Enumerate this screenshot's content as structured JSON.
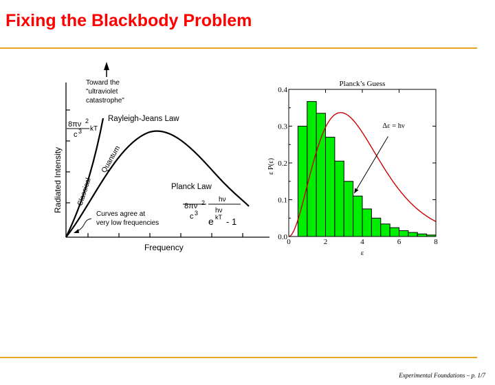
{
  "slide": {
    "title": "Fixing the Blackbody Problem",
    "footer": "Experimental Foundations – p. 1/7"
  },
  "left_figure": {
    "ylabel": "Radiated Intensity",
    "xlabel": "Frequency",
    "toward_line1": "Toward the",
    "toward_line2": "\"ultraviolet",
    "toward_line3": "catastrophe\"",
    "rj_label": "Rayleigh-Jeans Law",
    "rj_num": "8πν",
    "rj_pow": "2",
    "rj_kt": "kT",
    "rj_den": "c",
    "rj_den_pow": "3",
    "classical_label": "Classical",
    "quantum_label": "Quantum",
    "planck_label": "Planck Law",
    "pl_num": "8πν",
    "pl_pow": "2",
    "pl_den": "c",
    "pl_den_pow": "3",
    "pl_hv_top": "hν",
    "pl_hv_bot": "hν",
    "pl_e": "e",
    "pl_kt": "kT",
    "pl_minus": "- 1",
    "agree_line1": "Curves agree at",
    "agree_line2": "very low frequencies"
  },
  "chart_data": {
    "type": "bar",
    "title": "Planck’s Guess",
    "xlabel": "ε",
    "ylabel": "ε P(ε)",
    "xlim": [
      0,
      8
    ],
    "ylim": [
      0,
      0.4
    ],
    "xticks": [
      "0",
      "2",
      "4",
      "6",
      "8"
    ],
    "yticks": [
      "0.0",
      "0.1",
      "0.2",
      "0.3",
      "0.4"
    ],
    "bin_width": 0.5,
    "bins": [
      0.5,
      1.0,
      1.5,
      2.0,
      2.5,
      3.0,
      3.5,
      4.0,
      4.5,
      5.0,
      5.5,
      6.0,
      6.5,
      7.0,
      7.5
    ],
    "values": [
      0.3,
      0.367,
      0.335,
      0.27,
      0.205,
      0.15,
      0.11,
      0.075,
      0.05,
      0.034,
      0.024,
      0.016,
      0.011,
      0.007,
      0.004
    ],
    "annotation": "Δε = hν",
    "bar_color": "#00ee00",
    "curve_color": "#cc0000"
  }
}
